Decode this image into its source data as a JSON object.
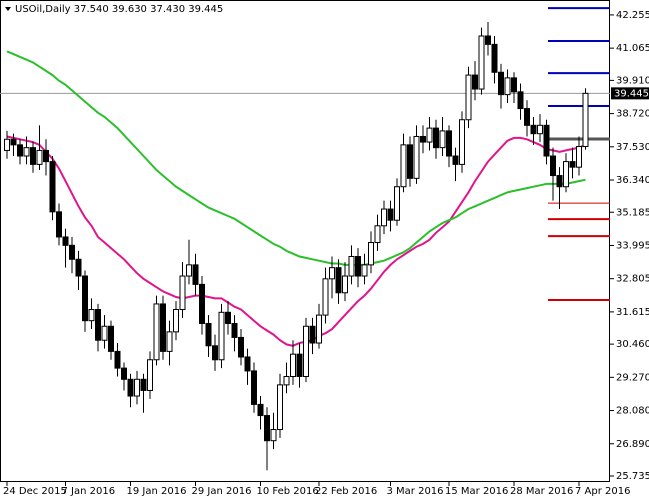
{
  "chart_data": {
    "type": "candlestick",
    "title": "USOil,Daily  37.540 39.630 37.430 39.445",
    "categories": [
      "24 Dec 2015",
      null,
      null,
      null,
      null,
      null,
      null,
      null,
      null,
      "7 Jan 2016",
      null,
      null,
      null,
      null,
      null,
      null,
      null,
      null,
      null,
      "19 Jan 2016",
      null,
      null,
      null,
      null,
      null,
      null,
      null,
      null,
      null,
      "29 Jan 2016",
      null,
      null,
      null,
      null,
      null,
      null,
      null,
      null,
      null,
      "10 Feb 2016",
      null,
      null,
      null,
      null,
      null,
      null,
      null,
      null,
      "22 Feb 2016",
      null,
      null,
      null,
      null,
      null,
      null,
      null,
      null,
      null,
      null,
      "3 Mar 2016",
      null,
      null,
      null,
      null,
      null,
      null,
      null,
      null,
      "15 Mar 2016",
      null,
      null,
      null,
      null,
      null,
      null,
      null,
      null,
      null,
      "28 Mar 2016",
      null,
      null,
      null,
      null,
      null,
      null,
      null,
      null,
      null,
      "7 Apr 2016",
      null
    ],
    "open": [
      37.4,
      37.8,
      37.6,
      37.2,
      37.5,
      36.9,
      37.4,
      37.0,
      35.2,
      34.3,
      34.0,
      33.5,
      32.9,
      31.3,
      31.7,
      30.6,
      31.1,
      30.2,
      29.6,
      29.2,
      28.6,
      29.2,
      28.8,
      29.9,
      31.9,
      30.2,
      30.9,
      31.7,
      32.9,
      33.3,
      32.6,
      31.2,
      30.4,
      29.9,
      31.6,
      31.2,
      30.7,
      30.0,
      29.5,
      28.3,
      27.9,
      27.0,
      27.4,
      29.0,
      29.3,
      30.1,
      29.3,
      31.1,
      30.5,
      31.5,
      32.8,
      33.2,
      32.3,
      32.9,
      33.6,
      32.9,
      33.3,
      34.1,
      34.7,
      35.3,
      34.9,
      36.1,
      37.6,
      36.4,
      37.9,
      37.7,
      38.2,
      37.5,
      38.1,
      37.2,
      36.9,
      38.5,
      40.1,
      39.6,
      41.5,
      41.2,
      40.2,
      39.4,
      40.0,
      39.5,
      38.9,
      38.3,
      38.0,
      38.3,
      37.2,
      36.5,
      36.1,
      37.0,
      36.8,
      37.54
    ],
    "high": [
      38.1,
      38.0,
      37.8,
      37.9,
      37.7,
      38.3,
      37.8,
      37.2,
      35.5,
      34.6,
      34.3,
      33.8,
      33.1,
      32.1,
      31.9,
      31.5,
      31.3,
      30.5,
      29.8,
      29.4,
      29.5,
      29.4,
      30.2,
      32.2,
      32.2,
      31.3,
      32.0,
      33.4,
      34.2,
      33.7,
      32.9,
      31.5,
      30.8,
      31.9,
      32.0,
      31.5,
      31.0,
      30.3,
      29.8,
      28.6,
      28.2,
      28.0,
      29.4,
      29.8,
      30.6,
      30.5,
      31.4,
      31.4,
      31.9,
      33.2,
      33.6,
      33.5,
      33.4,
      34.0,
      33.9,
      33.7,
      34.5,
      35.1,
      35.6,
      35.6,
      36.4,
      38.0,
      37.9,
      38.3,
      38.3,
      38.6,
      38.5,
      38.6,
      38.3,
      37.5,
      38.8,
      40.4,
      40.6,
      41.8,
      42.0,
      41.5,
      40.5,
      40.3,
      40.2,
      39.8,
      39.2,
      38.6,
      38.7,
      38.5,
      37.5,
      36.8,
      37.3,
      37.5,
      37.9,
      39.63
    ],
    "low": [
      37.1,
      37.2,
      36.9,
      36.9,
      36.6,
      36.7,
      36.5,
      34.9,
      34.0,
      33.2,
      33.0,
      32.4,
      30.9,
      31.0,
      30.2,
      30.3,
      29.9,
      29.3,
      28.8,
      28.2,
      28.3,
      28.0,
      28.5,
      29.7,
      29.9,
      29.7,
      30.6,
      31.4,
      32.6,
      32.2,
      30.8,
      30.0,
      29.5,
      29.6,
      30.8,
      30.2,
      29.7,
      29.0,
      28.0,
      27.4,
      25.94,
      26.7,
      27.1,
      28.7,
      29.0,
      28.9,
      29.1,
      30.1,
      30.3,
      31.2,
      32.1,
      31.9,
      32.0,
      32.6,
      32.5,
      32.6,
      33.0,
      33.8,
      34.4,
      34.5,
      34.7,
      35.9,
      36.1,
      36.2,
      37.3,
      37.4,
      37.1,
      37.2,
      36.8,
      36.3,
      36.6,
      38.2,
      39.2,
      39.4,
      40.8,
      39.8,
      38.9,
      39.1,
      39.1,
      38.5,
      37.9,
      37.6,
      37.7,
      36.9,
      35.6,
      35.3,
      35.9,
      36.4,
      36.5,
      37.43
    ],
    "close": [
      37.8,
      37.6,
      37.2,
      37.5,
      36.9,
      37.4,
      37.0,
      35.2,
      34.3,
      34.0,
      33.5,
      32.9,
      31.3,
      31.7,
      30.6,
      31.1,
      30.2,
      29.6,
      29.2,
      28.6,
      29.2,
      28.8,
      29.9,
      31.9,
      30.2,
      30.9,
      31.7,
      32.9,
      33.3,
      32.6,
      31.2,
      30.4,
      29.9,
      31.6,
      31.2,
      30.7,
      30.0,
      29.5,
      28.3,
      27.9,
      27.0,
      27.4,
      29.0,
      29.3,
      30.1,
      29.3,
      31.1,
      30.5,
      31.5,
      32.8,
      33.2,
      32.3,
      32.9,
      33.6,
      32.9,
      33.3,
      34.1,
      34.7,
      35.3,
      34.9,
      36.1,
      37.6,
      36.4,
      37.9,
      37.7,
      38.2,
      37.5,
      38.1,
      37.2,
      36.9,
      38.5,
      40.1,
      39.6,
      41.5,
      41.2,
      40.2,
      39.4,
      40.0,
      39.5,
      38.9,
      38.3,
      38.0,
      38.3,
      37.2,
      36.5,
      36.1,
      37.0,
      36.8,
      37.54,
      39.445
    ],
    "lines": [
      {
        "color": "#e0148c",
        "values": [
          37.9,
          37.85,
          37.8,
          37.75,
          37.7,
          37.6,
          37.35,
          37.1,
          36.75,
          36.3,
          35.85,
          35.4,
          35.0,
          34.7,
          34.3,
          34.1,
          33.9,
          33.7,
          33.5,
          33.25,
          33.0,
          32.8,
          32.65,
          32.5,
          32.35,
          32.25,
          32.15,
          32.1,
          32.15,
          32.2,
          32.2,
          32.15,
          32.1,
          32.1,
          31.95,
          31.8,
          31.7,
          31.5,
          31.3,
          31.1,
          30.95,
          30.8,
          30.6,
          30.45,
          30.4,
          30.5,
          30.55,
          30.6,
          30.75,
          30.85,
          31.0,
          31.25,
          31.5,
          31.75,
          32.0,
          32.2,
          32.45,
          32.75,
          33.05,
          33.3,
          33.5,
          33.65,
          33.8,
          33.95,
          34.05,
          34.2,
          34.45,
          34.65,
          34.85,
          35.2,
          35.55,
          35.9,
          36.3,
          36.65,
          37.0,
          37.25,
          37.5,
          37.75,
          37.85,
          37.85,
          37.8,
          37.7,
          37.6,
          37.45,
          37.4,
          37.35,
          37.4,
          37.45,
          37.5,
          37.6
        ]
      },
      {
        "color": "#2bbf2b",
        "values": [
          40.95,
          40.85,
          40.75,
          40.65,
          40.55,
          40.4,
          40.25,
          40.1,
          39.9,
          39.75,
          39.55,
          39.35,
          39.15,
          38.95,
          38.75,
          38.6,
          38.4,
          38.2,
          37.95,
          37.7,
          37.45,
          37.2,
          36.95,
          36.7,
          36.5,
          36.3,
          36.1,
          35.95,
          35.8,
          35.65,
          35.5,
          35.35,
          35.25,
          35.15,
          35.05,
          34.95,
          34.8,
          34.65,
          34.5,
          34.35,
          34.2,
          34.05,
          33.95,
          33.8,
          33.7,
          33.6,
          33.55,
          33.5,
          33.45,
          33.4,
          33.35,
          33.35,
          33.3,
          33.3,
          33.3,
          33.3,
          33.35,
          33.4,
          33.45,
          33.55,
          33.65,
          33.75,
          33.9,
          34.1,
          34.3,
          34.5,
          34.65,
          34.8,
          34.9,
          35.0,
          35.15,
          35.3,
          35.4,
          35.5,
          35.6,
          35.7,
          35.8,
          35.9,
          35.95,
          36.0,
          36.05,
          36.1,
          36.15,
          36.2,
          36.2,
          36.2,
          36.2,
          36.25,
          36.3,
          36.35
        ]
      }
    ],
    "levels": [
      {
        "value": 42.5,
        "color": "#0000b4"
      },
      {
        "value": 41.32,
        "color": "#0000b4"
      },
      {
        "value": 40.17,
        "color": "#0000b4"
      },
      {
        "value": 38.99,
        "color": "#0000b4"
      },
      {
        "value": 37.81,
        "color": "#555555"
      },
      {
        "value": 35.51,
        "color": "#d00000"
      },
      {
        "value": 34.94,
        "color": "#d00000"
      },
      {
        "value": 34.33,
        "color": "#d00000"
      },
      {
        "value": 32.04,
        "color": "#d00000"
      }
    ],
    "ylim": [
      25.52,
      42.79
    ],
    "yticks": [
      42.255,
      41.065,
      {
        "value": 39.91,
        "label": "39.910"
      },
      {
        "value": 38.72,
        "label": "38.720"
      },
      {
        "value": 37.53,
        "label": "37.530"
      },
      {
        "value": 36.34,
        "label": "36.340"
      },
      35.185,
      33.995,
      32.805,
      31.615,
      {
        "value": 30.46,
        "label": "30.460"
      },
      {
        "value": 29.27,
        "label": "29.270"
      },
      {
        "value": 28.08,
        "label": "28.080"
      },
      {
        "value": 26.89,
        "label": "26.890"
      },
      25.735
    ],
    "bull_color": "#ffffff",
    "bear_color": "#000000"
  }
}
